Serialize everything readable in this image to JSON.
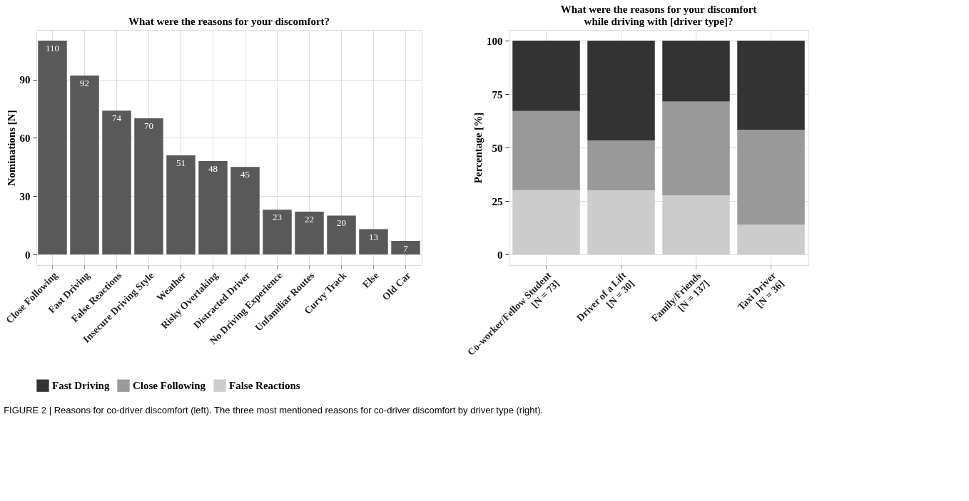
{
  "chart_data": [
    {
      "type": "bar",
      "title": "What were the reasons for your discomfort?",
      "ylabel": "Nominations [N]",
      "categories": [
        "Close Following",
        "Fast Driving",
        "False Reactions",
        "Insecure Driving Style",
        "Weather",
        "Risky Overtaking",
        "Distracted Driver",
        "No Driving Experience",
        "Unfamiliar Routes",
        "Curvy Track",
        "Else",
        "Old Car"
      ],
      "values": [
        110,
        92,
        74,
        70,
        51,
        48,
        45,
        23,
        22,
        20,
        13,
        7
      ],
      "color": "#595959",
      "ylim": [
        -5.5,
        115.5
      ],
      "yticks": [
        0,
        30,
        60,
        90
      ],
      "grid": true,
      "data_labels": true,
      "annotations": [
        "FIGURE 2 | Reasons for co-driver discomfort (left). The three most mentioned reasons for co-driver discomfort by driver type (right)."
      ]
    },
    {
      "type": "bar",
      "title": "What were the reasons for your discomfort\nwhile driving with [driver type]?",
      "ylabel": "Percentage [%]",
      "categories": [
        "Co-worker/Fellow Student\n[N = 73]",
        "Driver of a Lift\n[N = 30]",
        "Family/Friends\n[N = 137]",
        "Taxi Driver\n[N = 36]"
      ],
      "stacked": true,
      "legend": "bottom",
      "grid": true,
      "series": [
        {
          "name": "False Reactions",
          "color": "#cccccc",
          "values": [
            30.1,
            30.0,
            27.7,
            13.9
          ]
        },
        {
          "name": "Close Following",
          "color": "#999999",
          "values": [
            37.0,
            23.3,
            43.8,
            44.4
          ]
        },
        {
          "name": "Fast Driving",
          "color": "#333333",
          "values": [
            32.9,
            46.7,
            28.5,
            41.7
          ]
        }
      ],
      "ylim": [
        -5,
        105
      ],
      "yticks": [
        0,
        25,
        50,
        75,
        100
      ]
    }
  ]
}
